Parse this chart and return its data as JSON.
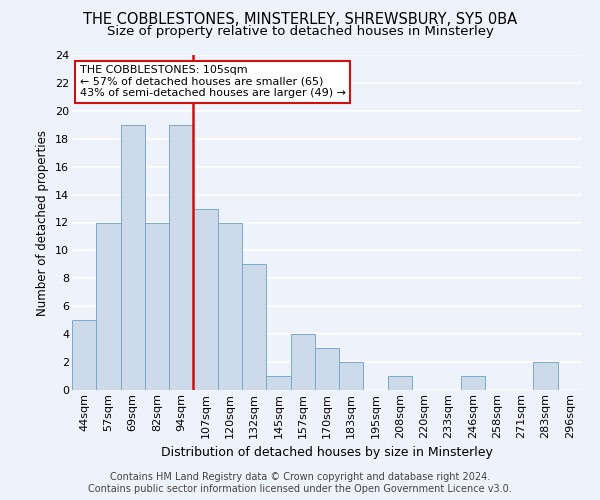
{
  "title": "THE COBBLESTONES, MINSTERLEY, SHREWSBURY, SY5 0BA",
  "subtitle": "Size of property relative to detached houses in Minsterley",
  "xlabel": "Distribution of detached houses by size in Minsterley",
  "ylabel": "Number of detached properties",
  "categories": [
    "44sqm",
    "57sqm",
    "69sqm",
    "82sqm",
    "94sqm",
    "107sqm",
    "120sqm",
    "132sqm",
    "145sqm",
    "157sqm",
    "170sqm",
    "183sqm",
    "195sqm",
    "208sqm",
    "220sqm",
    "233sqm",
    "246sqm",
    "258sqm",
    "271sqm",
    "283sqm",
    "296sqm"
  ],
  "values": [
    5,
    12,
    19,
    12,
    19,
    13,
    12,
    9,
    1,
    4,
    3,
    2,
    0,
    1,
    0,
    0,
    1,
    0,
    0,
    2,
    0
  ],
  "bar_color": "#cddaea",
  "bar_edge_color": "#7aaac8",
  "bar_linewidth": 0.7,
  "vline_x": 5,
  "vline_color": "#cc1111",
  "annotation_text": "THE COBBLESTONES: 105sqm\n← 57% of detached houses are smaller (65)\n43% of semi-detached houses are larger (49) →",
  "annotation_box_facecolor": "#ffffff",
  "annotation_box_edgecolor": "#cc1111",
  "annotation_fontsize": 8,
  "ylim": [
    0,
    24
  ],
  "yticks": [
    0,
    2,
    4,
    6,
    8,
    10,
    12,
    14,
    16,
    18,
    20,
    22,
    24
  ],
  "background_color": "#eef2fa",
  "grid_color": "#ffffff",
  "title_fontsize": 10.5,
  "subtitle_fontsize": 9.5,
  "xlabel_fontsize": 9,
  "ylabel_fontsize": 8.5,
  "tick_fontsize": 8,
  "footer_line1": "Contains HM Land Registry data © Crown copyright and database right 2024.",
  "footer_line2": "Contains public sector information licensed under the Open Government Licence v3.0.",
  "footer_fontsize": 7
}
